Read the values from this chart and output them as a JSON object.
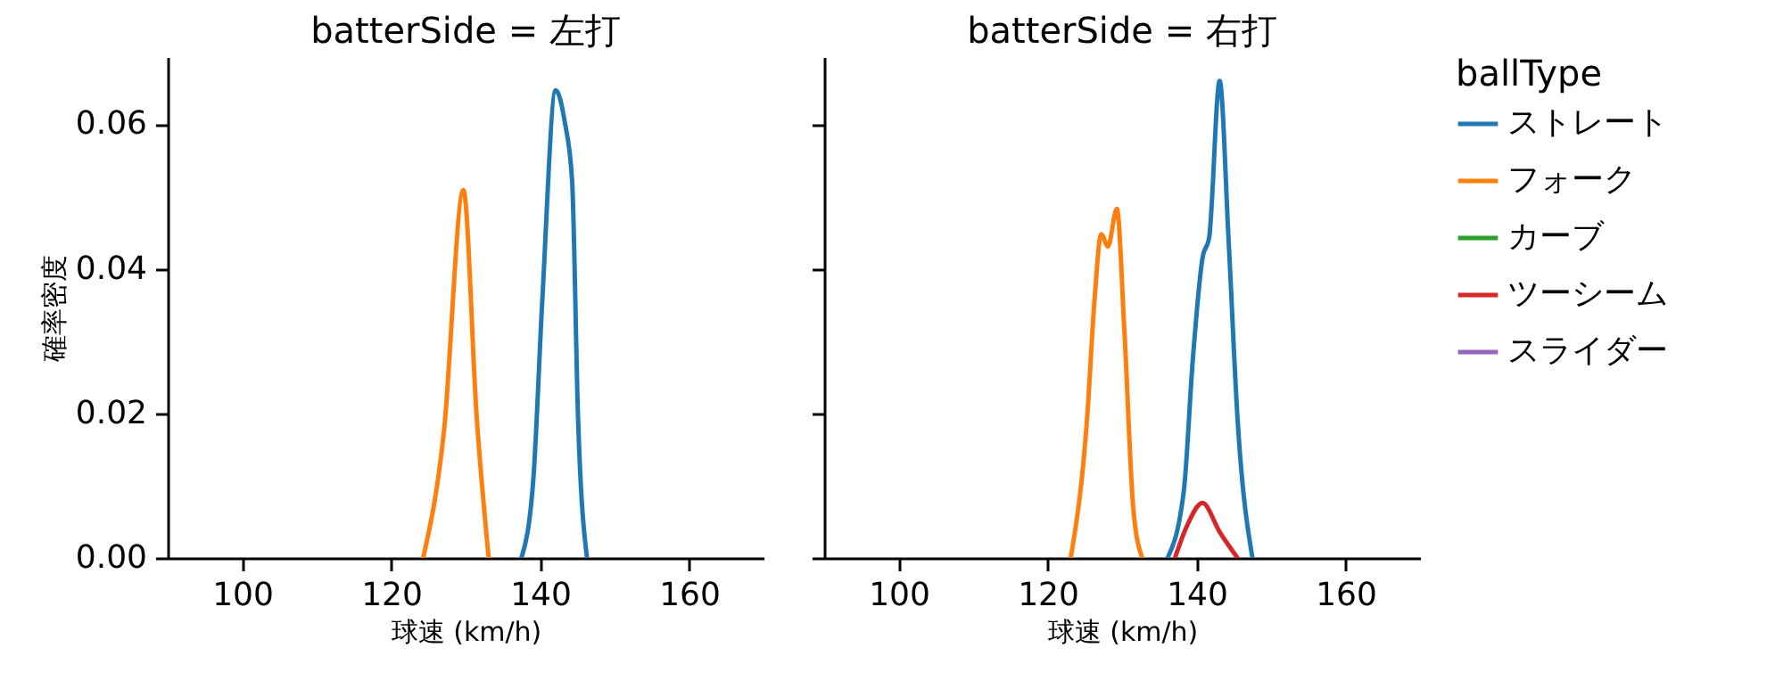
{
  "chart_data": [
    {
      "type": "line",
      "title": "batterSide = 左打",
      "xlabel": "球速 (km/h)",
      "ylabel": "確率密度",
      "xlim": [
        90,
        170
      ],
      "ylim": [
        0,
        0.0693
      ],
      "xticks": [
        100,
        120,
        140,
        160
      ],
      "yticks": [
        {
          "value": 0,
          "label": "0.00"
        },
        {
          "value": 0.02,
          "label": "0.02"
        },
        {
          "value": 0.04,
          "label": "0.04"
        },
        {
          "value": 0.06,
          "label": "0.06"
        }
      ],
      "legend": false,
      "series": [
        {
          "color": "#1f77b4",
          "x": [
            137.5,
            139.1,
            140.3,
            142.1,
            143.3,
            144.3,
            145.1,
            146.3
          ],
          "values": [
            0,
            0.011,
            0.0357,
            0.0647,
            0.0604,
            0.0522,
            0.0193,
            0
          ]
        },
        {
          "color": "#ff7f0e",
          "x": [
            124.3,
            127.1,
            129.7,
            131.5,
            133.1
          ],
          "values": [
            0,
            0.0176,
            0.0509,
            0.0193,
            0
          ]
        }
      ]
    },
    {
      "type": "line",
      "title": "batterSide = 右打",
      "xlabel": "球速 (km/h)",
      "xlim": [
        90,
        170
      ],
      "ylim": [
        0,
        0.0693
      ],
      "xticks": [
        100,
        120,
        140,
        160
      ],
      "yticks": [
        {
          "value": 0,
          "label": null
        },
        {
          "value": 0.02,
          "label": null
        },
        {
          "value": 0.04,
          "label": null
        },
        {
          "value": 0.06,
          "label": null
        }
      ],
      "tick_labels": "x",
      "legend": "right",
      "legend_title": "ballType",
      "series": [
        {
          "name": "ストレート",
          "color": "#1f77b4",
          "x": [
            136.1,
            138.3,
            139.5,
            140.8,
            141.7,
            143.1,
            144.3,
            145.5,
            147.5
          ],
          "values": [
            0,
            0.0094,
            0.0275,
            0.0415,
            0.0444,
            0.066,
            0.044,
            0.0193,
            0
          ]
        },
        {
          "name": "フォーク",
          "color": "#ff7f0e",
          "x": [
            123.1,
            125.3,
            126.3,
            127.2,
            128.1,
            129.3,
            130.3,
            131.5,
            132.7
          ],
          "values": [
            0,
            0.0193,
            0.0357,
            0.0448,
            0.0431,
            0.0483,
            0.0316,
            0.0069,
            0
          ]
        },
        {
          "name": "カーブ",
          "color": "#2ca02c"
        },
        {
          "name": "ツーシーム",
          "color": "#d62728",
          "x": [
            137.1,
            138.7,
            140.8,
            143.1,
            145.5
          ],
          "values": [
            0,
            0.0044,
            0.0076,
            0.0036,
            0
          ]
        },
        {
          "name": "スライダー",
          "color": "#9467bd"
        }
      ]
    }
  ]
}
